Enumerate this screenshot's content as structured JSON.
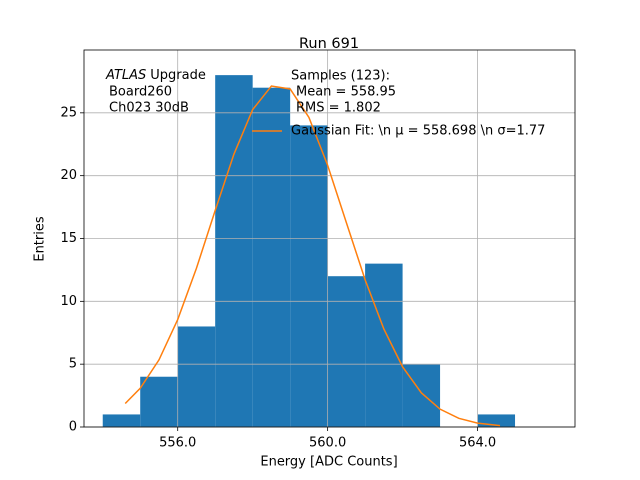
{
  "chart_data": {
    "type": "histogram",
    "title": "Run 691",
    "xlabel": "Energy [ADC Counts]",
    "ylabel": "Entries",
    "bins": [
      554,
      555,
      556,
      557,
      558,
      559,
      560,
      561,
      562,
      563,
      564,
      565
    ],
    "values": [
      1,
      4,
      8,
      28,
      27,
      24,
      12,
      13,
      5,
      0,
      1
    ],
    "color": "#1f77b4",
    "xlim": [
      553.5,
      566.6
    ],
    "ylim": [
      0,
      30
    ],
    "xticks": [
      {
        "value": 556,
        "label": "556.0"
      },
      {
        "value": 560,
        "label": "560.0"
      },
      {
        "value": 564,
        "label": "564.0"
      }
    ],
    "yticks": [
      0,
      5,
      10,
      15,
      20,
      25
    ],
    "grid": true,
    "annotation": {
      "italic": "ATLAS",
      "text": "Upgrade",
      "lines": [
        "Board260",
        "Ch023 30dB"
      ]
    },
    "stats": [
      "Samples (123):",
      "Mean = 558.95",
      "RMS = 1.802"
    ],
    "fit": {
      "type": "line",
      "name": "Gaussian Fit: \\n μ = 558.698 \\n σ=1.77",
      "color": "#ff7f0e",
      "x": [
        554.6,
        555,
        555.5,
        556,
        556.5,
        557,
        557.5,
        558,
        558.5,
        559,
        559.5,
        560,
        560.5,
        561,
        561.5,
        562,
        562.5,
        563,
        563.5,
        564,
        564.6
      ],
      "values": [
        1.87,
        3.08,
        5.34,
        8.55,
        12.63,
        17.23,
        21.71,
        25.26,
        27.13,
        26.9,
        24.64,
        20.83,
        16.26,
        11.72,
        7.8,
        4.79,
        2.72,
        1.42,
        0.69,
        0.31,
        0.11
      ]
    }
  }
}
